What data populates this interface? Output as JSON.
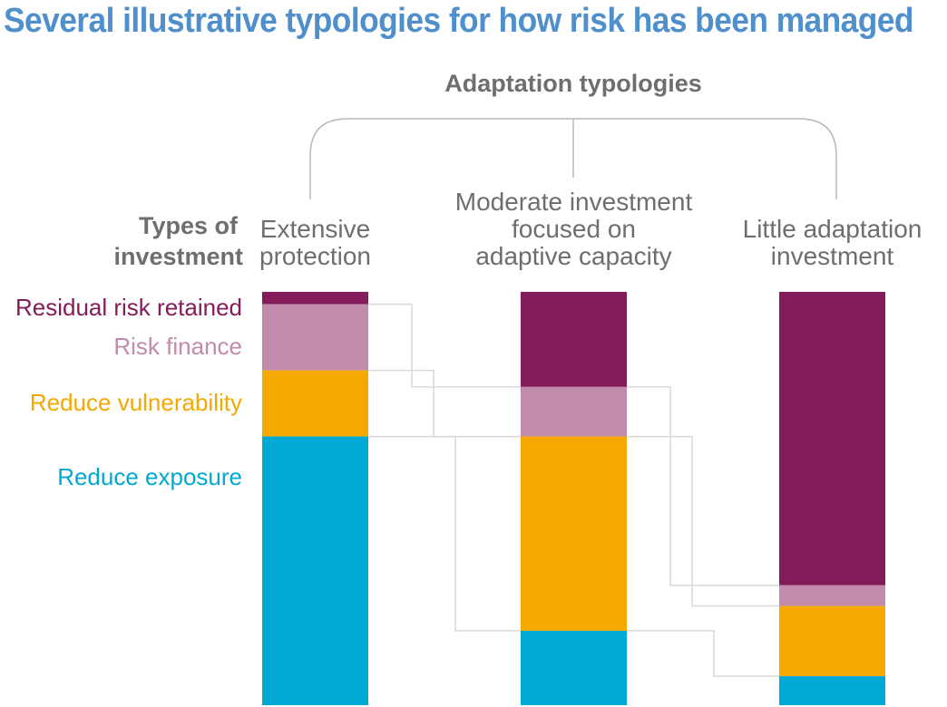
{
  "title": "Several illustrative typologies for how risk has been managed",
  "group_label": "Adaptation typologies",
  "row_header": [
    "Types of",
    "investment"
  ],
  "colors": {
    "residual_risk": "#841c5c",
    "risk_finance": "#c28aab",
    "reduce_vulnerability": "#f5a800",
    "reduce_exposure": "#00a9d4",
    "title": "#4f8fcc",
    "text": "#6d6e71",
    "connector": "#d9d9d9"
  },
  "chart_data": {
    "type": "bar",
    "stacked": true,
    "categories": [
      [
        "Extensive",
        "protection"
      ],
      [
        "Moderate investment",
        "focused on",
        "adaptive capacity"
      ],
      [
        "Little adaptation",
        "investment"
      ]
    ],
    "series": [
      {
        "key": "residual_risk",
        "name": "Residual risk retained",
        "values": [
          3,
          23,
          71
        ]
      },
      {
        "key": "risk_finance",
        "name": "Risk finance",
        "values": [
          16,
          12,
          5
        ]
      },
      {
        "key": "reduce_vulnerability",
        "name": "Reduce vulnerability",
        "values": [
          16,
          47,
          17
        ]
      },
      {
        "key": "reduce_exposure",
        "name": "Reduce exposure",
        "values": [
          65,
          18,
          7
        ]
      }
    ],
    "ylim": [
      0,
      100
    ],
    "legend": "left",
    "grid": false
  }
}
